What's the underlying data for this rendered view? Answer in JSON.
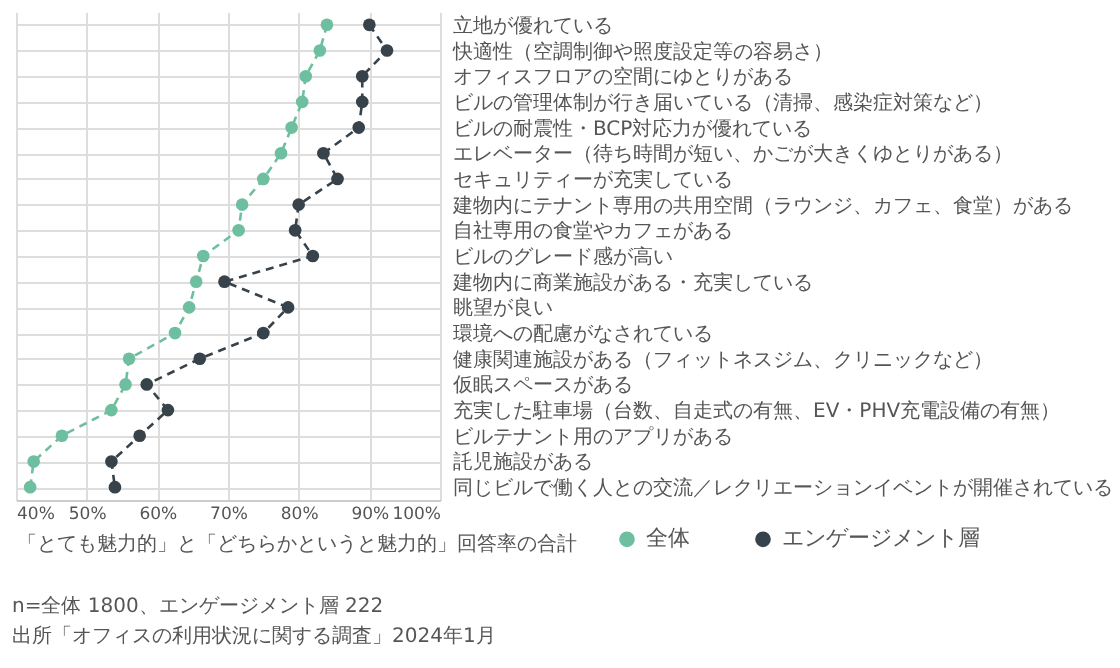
{
  "chart_data": {
    "type": "line",
    "orientation": "horizontal",
    "xlabel": "「とても魅力的」と「どちらかというと魅力的」回答率の合計",
    "categories": [
      "立地が優れている",
      "快適性（空調制御や照度設定等の容易さ）",
      "オフィスフロアの空間にゆとりがある",
      "ビルの管理体制が行き届いている（清掃、感染症対策など）",
      "ビルの耐震性・BCP対応力が優れている",
      "エレベーター（待ち時間が短い、かごが大きくゆとりがある）",
      "セキュリティーが充実している",
      "建物内にテナント専用の共用空間（ラウンジ、カフェ、食堂）がある",
      "自社専用の食堂やカフェがある",
      "ビルのグレード感が高い",
      "建物内に商業施設がある・充実している",
      "眺望が良い",
      "環境への配慮がなされている",
      "健康関連施設がある（フィットネスジム、クリニックなど）",
      "仮眠スペースがある",
      "充実した駐車場（台数、自走式の有無、EV・PHV充電設備の有無）",
      "ビルテナント用のアプリがある",
      "託児施設がある",
      "同じビルで働く人との交流／レクリエーションイベントが開催されている"
    ],
    "series": [
      {
        "name": "全体",
        "color": "#6dbf9f",
        "values": [
          84,
          83,
          81,
          80.5,
          79,
          77.5,
          75,
          72,
          71.5,
          66.5,
          65.5,
          64.5,
          62.5,
          56,
          55.5,
          53.5,
          46.5,
          42.5,
          42
        ]
      },
      {
        "name": "エンゲージメント層",
        "color": "#37424a",
        "values": [
          90,
          92.5,
          89,
          89,
          88.5,
          83.5,
          85.5,
          80,
          79.5,
          82,
          69.5,
          78.5,
          75,
          66,
          58.5,
          61.5,
          57.5,
          53.5,
          54
        ]
      }
    ],
    "xlim": [
      40,
      100
    ],
    "xticks": [
      {
        "value": 40,
        "label": "40%"
      },
      {
        "value": 50,
        "label": "50%"
      },
      {
        "value": 60,
        "label": "60%"
      },
      {
        "value": 70,
        "label": "70%"
      },
      {
        "value": 80,
        "label": "80%"
      },
      {
        "value": 90,
        "label": "90%"
      },
      {
        "value": 100,
        "label": "100%"
      }
    ],
    "grid": true,
    "legend": "bottom right",
    "marker": "circle",
    "line_style": "dashed",
    "annotations": [
      "n=全体 1800、エンゲージメント層 222",
      "出所「オフィスの利用状況に関する調査」2024年1月"
    ]
  }
}
